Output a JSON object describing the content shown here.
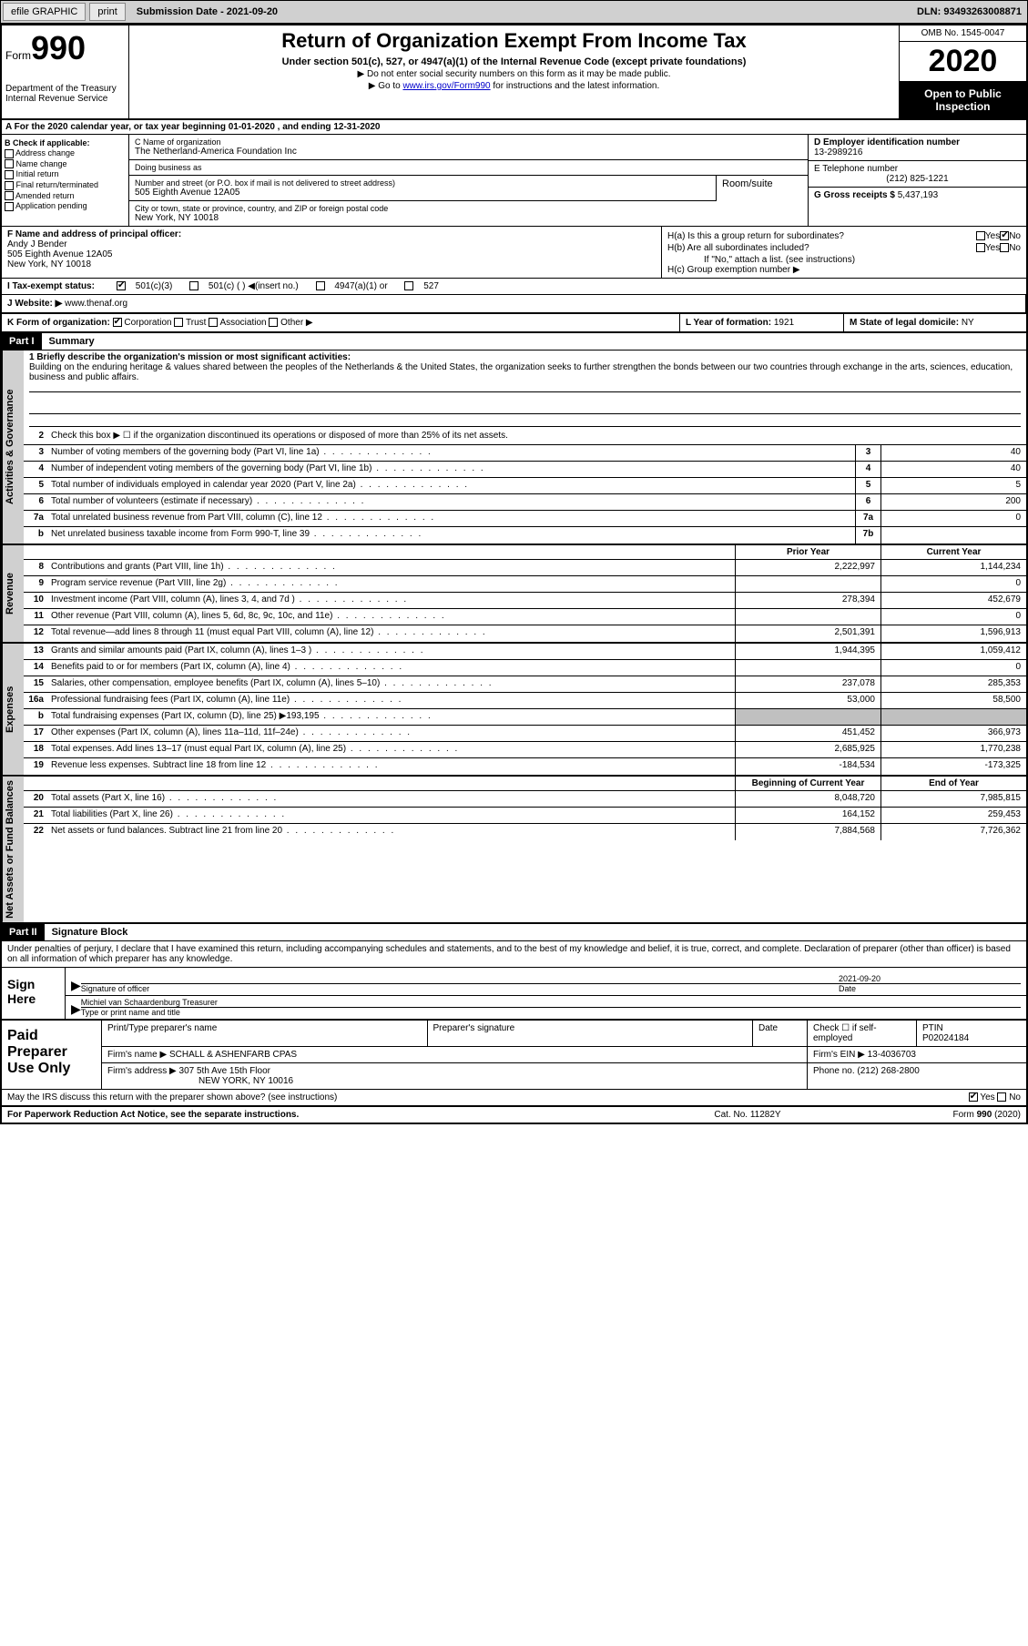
{
  "toolbar": {
    "efile": "efile GRAPHIC",
    "print": "print",
    "submission": "Submission Date - 2021-09-20",
    "dln": "DLN: 93493263008871"
  },
  "header": {
    "form_prefix": "Form",
    "form_number": "990",
    "dept": "Department of the Treasury\nInternal Revenue Service",
    "title": "Return of Organization Exempt From Income Tax",
    "subtitle": "Under section 501(c), 527, or 4947(a)(1) of the Internal Revenue Code (except private foundations)",
    "note1": "▶ Do not enter social security numbers on this form as it may be made public.",
    "note2_pre": "▶ Go to ",
    "note2_link": "www.irs.gov/Form990",
    "note2_post": " for instructions and the latest information.",
    "omb": "OMB No. 1545-0047",
    "year": "2020",
    "inspection": "Open to Public Inspection"
  },
  "row_a": "A For the 2020 calendar year, or tax year beginning 01-01-2020    , and ending 12-31-2020",
  "section_b": {
    "label": "B Check if applicable:",
    "items": [
      "Address change",
      "Name change",
      "Initial return",
      "Final return/terminated",
      "Amended return",
      "Application pending"
    ]
  },
  "section_c": {
    "name_label": "C Name of organization",
    "name": "The Netherland-America Foundation Inc",
    "dba_label": "Doing business as",
    "dba": "",
    "addr_label": "Number and street (or P.O. box if mail is not delivered to street address)",
    "room_label": "Room/suite",
    "addr": "505 Eighth Avenue 12A05",
    "city_label": "City or town, state or province, country, and ZIP or foreign postal code",
    "city": "New York, NY  10018"
  },
  "section_d": {
    "ein_label": "D Employer identification number",
    "ein": "13-2989216",
    "phone_label": "E Telephone number",
    "phone": "(212) 825-1221",
    "gross_label": "G Gross receipts $",
    "gross": "5,437,193"
  },
  "section_f": {
    "label": "F  Name and address of principal officer:",
    "name": "Andy J Bender",
    "addr1": "505 Eighth Avenue 12A05",
    "addr2": "New York, NY  10018"
  },
  "section_h": {
    "ha": "H(a)  Is this a group return for subordinates?",
    "hb": "H(b)  Are all subordinates included?",
    "hb_note": "If \"No,\" attach a list. (see instructions)",
    "hc": "H(c)  Group exemption number ▶",
    "yes": "Yes",
    "no": "No"
  },
  "tax_exempt": {
    "label": "I   Tax-exempt status:",
    "opt1": "501(c)(3)",
    "opt2": "501(c) (  ) ◀(insert no.)",
    "opt3": "4947(a)(1) or",
    "opt4": "527"
  },
  "row_j": {
    "label": "J   Website: ▶",
    "value": "www.thenaf.org"
  },
  "row_k": {
    "label": "K Form of organization:",
    "opts": [
      "Corporation",
      "Trust",
      "Association",
      "Other ▶"
    ],
    "l_label": "L Year of formation:",
    "l_value": "1921",
    "m_label": "M State of legal domicile:",
    "m_value": "NY"
  },
  "part1": {
    "header": "Part I",
    "title": "Summary",
    "side_labels": [
      "Activities & Governance",
      "Revenue",
      "Expenses",
      "Net Assets or Fund Balances"
    ],
    "mission_label": "1   Briefly describe the organization's mission or most significant activities:",
    "mission": "Building on the enduring heritage & values shared between the peoples of the Netherlands & the United States, the organization seeks to further strengthen the bonds between our two countries through exchange in the arts, sciences, education, business and public affairs.",
    "line2": "Check this box ▶ ☐ if the organization discontinued its operations or disposed of more than 25% of its net assets.",
    "lines_gov": [
      {
        "n": "3",
        "d": "Number of voting members of the governing body (Part VI, line 1a)",
        "box": "3",
        "v": "40"
      },
      {
        "n": "4",
        "d": "Number of independent voting members of the governing body (Part VI, line 1b)",
        "box": "4",
        "v": "40"
      },
      {
        "n": "5",
        "d": "Total number of individuals employed in calendar year 2020 (Part V, line 2a)",
        "box": "5",
        "v": "5"
      },
      {
        "n": "6",
        "d": "Total number of volunteers (estimate if necessary)",
        "box": "6",
        "v": "200"
      },
      {
        "n": "7a",
        "d": "Total unrelated business revenue from Part VIII, column (C), line 12",
        "box": "7a",
        "v": "0"
      },
      {
        "n": "b",
        "d": "Net unrelated business taxable income from Form 990-T, line 39",
        "box": "7b",
        "v": ""
      }
    ],
    "col_prior": "Prior Year",
    "col_current": "Current Year",
    "lines_rev": [
      {
        "n": "8",
        "d": "Contributions and grants (Part VIII, line 1h)",
        "p": "2,222,997",
        "c": "1,144,234"
      },
      {
        "n": "9",
        "d": "Program service revenue (Part VIII, line 2g)",
        "p": "",
        "c": "0"
      },
      {
        "n": "10",
        "d": "Investment income (Part VIII, column (A), lines 3, 4, and 7d )",
        "p": "278,394",
        "c": "452,679"
      },
      {
        "n": "11",
        "d": "Other revenue (Part VIII, column (A), lines 5, 6d, 8c, 9c, 10c, and 11e)",
        "p": "",
        "c": "0"
      },
      {
        "n": "12",
        "d": "Total revenue—add lines 8 through 11 (must equal Part VIII, column (A), line 12)",
        "p": "2,501,391",
        "c": "1,596,913"
      }
    ],
    "lines_exp": [
      {
        "n": "13",
        "d": "Grants and similar amounts paid (Part IX, column (A), lines 1–3 )",
        "p": "1,944,395",
        "c": "1,059,412"
      },
      {
        "n": "14",
        "d": "Benefits paid to or for members (Part IX, column (A), line 4)",
        "p": "",
        "c": "0"
      },
      {
        "n": "15",
        "d": "Salaries, other compensation, employee benefits (Part IX, column (A), lines 5–10)",
        "p": "237,078",
        "c": "285,353"
      },
      {
        "n": "16a",
        "d": "Professional fundraising fees (Part IX, column (A), line 11e)",
        "p": "53,000",
        "c": "58,500"
      },
      {
        "n": "b",
        "d": "Total fundraising expenses (Part IX, column (D), line 25) ▶193,195",
        "p": "shaded",
        "c": "shaded"
      },
      {
        "n": "17",
        "d": "Other expenses (Part IX, column (A), lines 11a–11d, 11f–24e)",
        "p": "451,452",
        "c": "366,973"
      },
      {
        "n": "18",
        "d": "Total expenses. Add lines 13–17 (must equal Part IX, column (A), line 25)",
        "p": "2,685,925",
        "c": "1,770,238"
      },
      {
        "n": "19",
        "d": "Revenue less expenses. Subtract line 18 from line 12",
        "p": "-184,534",
        "c": "-173,325"
      }
    ],
    "col_begin": "Beginning of Current Year",
    "col_end": "End of Year",
    "lines_net": [
      {
        "n": "20",
        "d": "Total assets (Part X, line 16)",
        "p": "8,048,720",
        "c": "7,985,815"
      },
      {
        "n": "21",
        "d": "Total liabilities (Part X, line 26)",
        "p": "164,152",
        "c": "259,453"
      },
      {
        "n": "22",
        "d": "Net assets or fund balances. Subtract line 21 from line 20",
        "p": "7,884,568",
        "c": "7,726,362"
      }
    ]
  },
  "part2": {
    "header": "Part II",
    "title": "Signature Block",
    "declaration": "Under penalties of perjury, I declare that I have examined this return, including accompanying schedules and statements, and to the best of my knowledge and belief, it is true, correct, and complete. Declaration of preparer (other than officer) is based on all information of which preparer has any knowledge.",
    "sign_here": "Sign Here",
    "sig_officer": "Signature of officer",
    "sig_date": "Date",
    "sig_date_val": "2021-09-20",
    "officer_name": "Michiel van Schaardenburg Treasurer",
    "officer_label": "Type or print name and title",
    "paid_prep": "Paid Preparer Use Only",
    "prep_name_label": "Print/Type preparer's name",
    "prep_sig_label": "Preparer's signature",
    "prep_date_label": "Date",
    "prep_check": "Check ☐ if self-employed",
    "ptin_label": "PTIN",
    "ptin": "P02024184",
    "firm_name_label": "Firm's name     ▶",
    "firm_name": "SCHALL & ASHENFARB CPAS",
    "firm_ein_label": "Firm's EIN ▶",
    "firm_ein": "13-4036703",
    "firm_addr_label": "Firm's address ▶",
    "firm_addr1": "307 5th Ave 15th Floor",
    "firm_addr2": "NEW YORK, NY  10016",
    "firm_phone_label": "Phone no.",
    "firm_phone": "(212) 268-2800",
    "discuss": "May the IRS discuss this return with the preparer shown above? (see instructions)"
  },
  "footer": {
    "left": "For Paperwork Reduction Act Notice, see the separate instructions.",
    "center": "Cat. No. 11282Y",
    "right": "Form 990 (2020)"
  }
}
